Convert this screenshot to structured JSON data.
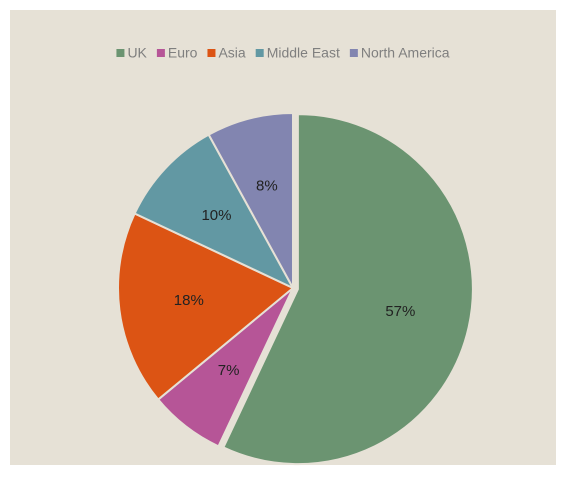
{
  "chart_data": {
    "type": "pie",
    "categories": [
      "UK",
      "Euro",
      "Asia",
      "Middle East",
      "North America"
    ],
    "values": [
      57,
      7,
      18,
      10,
      8
    ],
    "value_labels": [
      "57%",
      "7%",
      "18%",
      "10%",
      "8%"
    ],
    "colors": [
      "#6b9471",
      "#b65597",
      "#dc5414",
      "#6298a3",
      "#8285b0"
    ],
    "exploded": [
      "UK"
    ],
    "legend": "top"
  }
}
